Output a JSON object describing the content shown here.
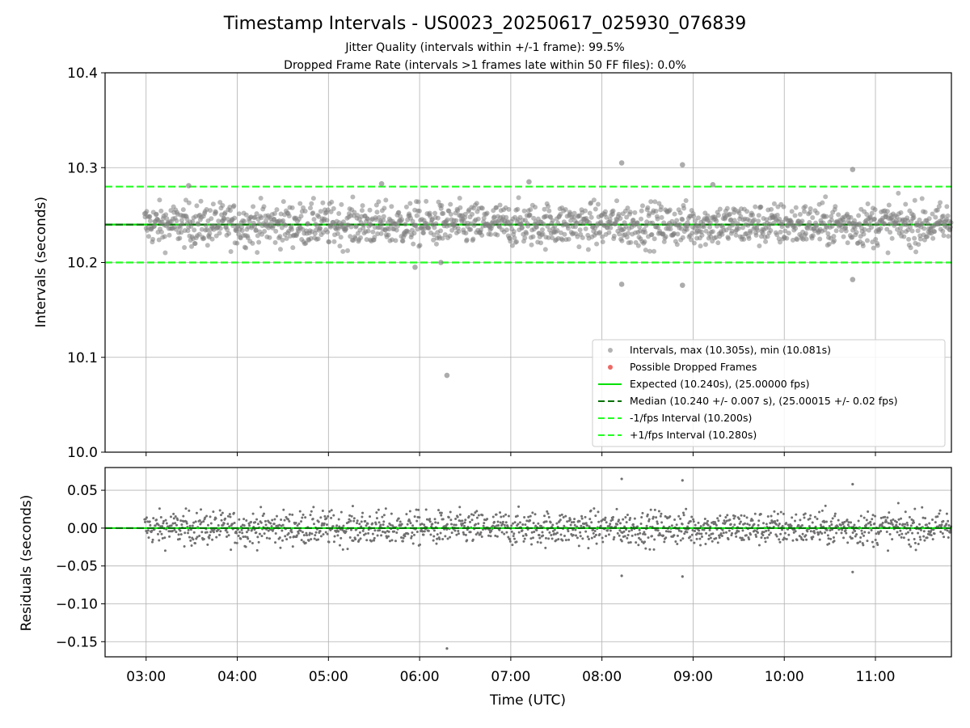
{
  "chart_data": [
    {
      "type": "scatter",
      "title": "Timestamp Intervals - US0023_20250617_025930_076839",
      "subtitle_lines": [
        "Jitter Quality (intervals within +/-1 frame): 99.5%",
        "Dropped Frame Rate (intervals >1 frames late within 50 FF files): 0.0%"
      ],
      "xlabel": "",
      "ylabel": "Intervals (seconds)",
      "xlim": [
        "02:33",
        "11:50"
      ],
      "ylim": [
        10.0,
        10.4
      ],
      "yticks": [
        "10.0",
        "10.1",
        "10.2",
        "10.3",
        "10.4"
      ],
      "xticks": [
        "03:00",
        "04:00",
        "05:00",
        "06:00",
        "07:00",
        "08:00",
        "09:00",
        "10:00",
        "11:00"
      ],
      "grid": true,
      "legend_position": "lower-right",
      "series": [
        {
          "name": "Intervals, max (10.305s), min (10.081s)",
          "color": "#808080",
          "kind": "scatter",
          "notable_points": [
            {
              "x": "08:13",
              "y": 10.305
            },
            {
              "x": "08:53",
              "y": 10.303
            },
            {
              "x": "10:45",
              "y": 10.298
            },
            {
              "x": "07:12",
              "y": 10.285
            },
            {
              "x": "05:35",
              "y": 10.283
            },
            {
              "x": "09:13",
              "y": 10.282
            },
            {
              "x": "03:28",
              "y": 10.281
            },
            {
              "x": "06:14",
              "y": 10.2
            },
            {
              "x": "05:57",
              "y": 10.195
            },
            {
              "x": "08:13",
              "y": 10.177
            },
            {
              "x": "08:53",
              "y": 10.176
            },
            {
              "x": "10:45",
              "y": 10.182
            },
            {
              "x": "06:18",
              "y": 10.081
            }
          ],
          "typical_spread": [
            10.215,
            10.265
          ]
        },
        {
          "name": "Possible Dropped Frames",
          "color": "#e8433f",
          "kind": "scatter",
          "values": []
        },
        {
          "name": "Expected (10.240s), (25.00000 fps)",
          "color": "#00e000",
          "kind": "line",
          "y": 10.24
        },
        {
          "name": "Median (10.240 +/- 0.007 s), (25.00015 +/- 0.02 fps)",
          "color": "#007000",
          "kind": "dashed-line",
          "y": 10.24
        },
        {
          "name": "-1/fps Interval (10.200s)",
          "color": "#22ff22",
          "kind": "dashed-line",
          "y": 10.2
        },
        {
          "name": "+1/fps Interval (10.280s)",
          "color": "#22ff22",
          "kind": "dashed-line",
          "y": 10.28
        }
      ]
    },
    {
      "type": "scatter",
      "xlabel": "Time (UTC)",
      "ylabel": "Residuals (seconds)",
      "xlim": [
        "02:33",
        "11:50"
      ],
      "ylim": [
        -0.17,
        0.08
      ],
      "yticks": [
        "0.05",
        "0.00",
        "−0.05",
        "−0.10",
        "−0.15"
      ],
      "xticks": [
        "03:00",
        "04:00",
        "05:00",
        "06:00",
        "07:00",
        "08:00",
        "09:00",
        "10:00",
        "11:00"
      ],
      "grid": true,
      "series": [
        {
          "name": "",
          "color": "#707070",
          "kind": "scatter",
          "notable_points": [
            {
              "x": "08:13",
              "y": 0.065
            },
            {
              "x": "08:53",
              "y": 0.063
            },
            {
              "x": "10:45",
              "y": 0.058
            },
            {
              "x": "08:13",
              "y": -0.063
            },
            {
              "x": "08:53",
              "y": -0.064
            },
            {
              "x": "10:45",
              "y": -0.058
            },
            {
              "x": "06:18",
              "y": -0.159
            }
          ],
          "typical_spread": [
            -0.025,
            0.025
          ]
        },
        {
          "name": "",
          "color": "#00e000",
          "kind": "line",
          "y": 0.0
        },
        {
          "name": "",
          "color": "#007000",
          "kind": "dashed-line",
          "y": 0.0
        }
      ]
    }
  ]
}
